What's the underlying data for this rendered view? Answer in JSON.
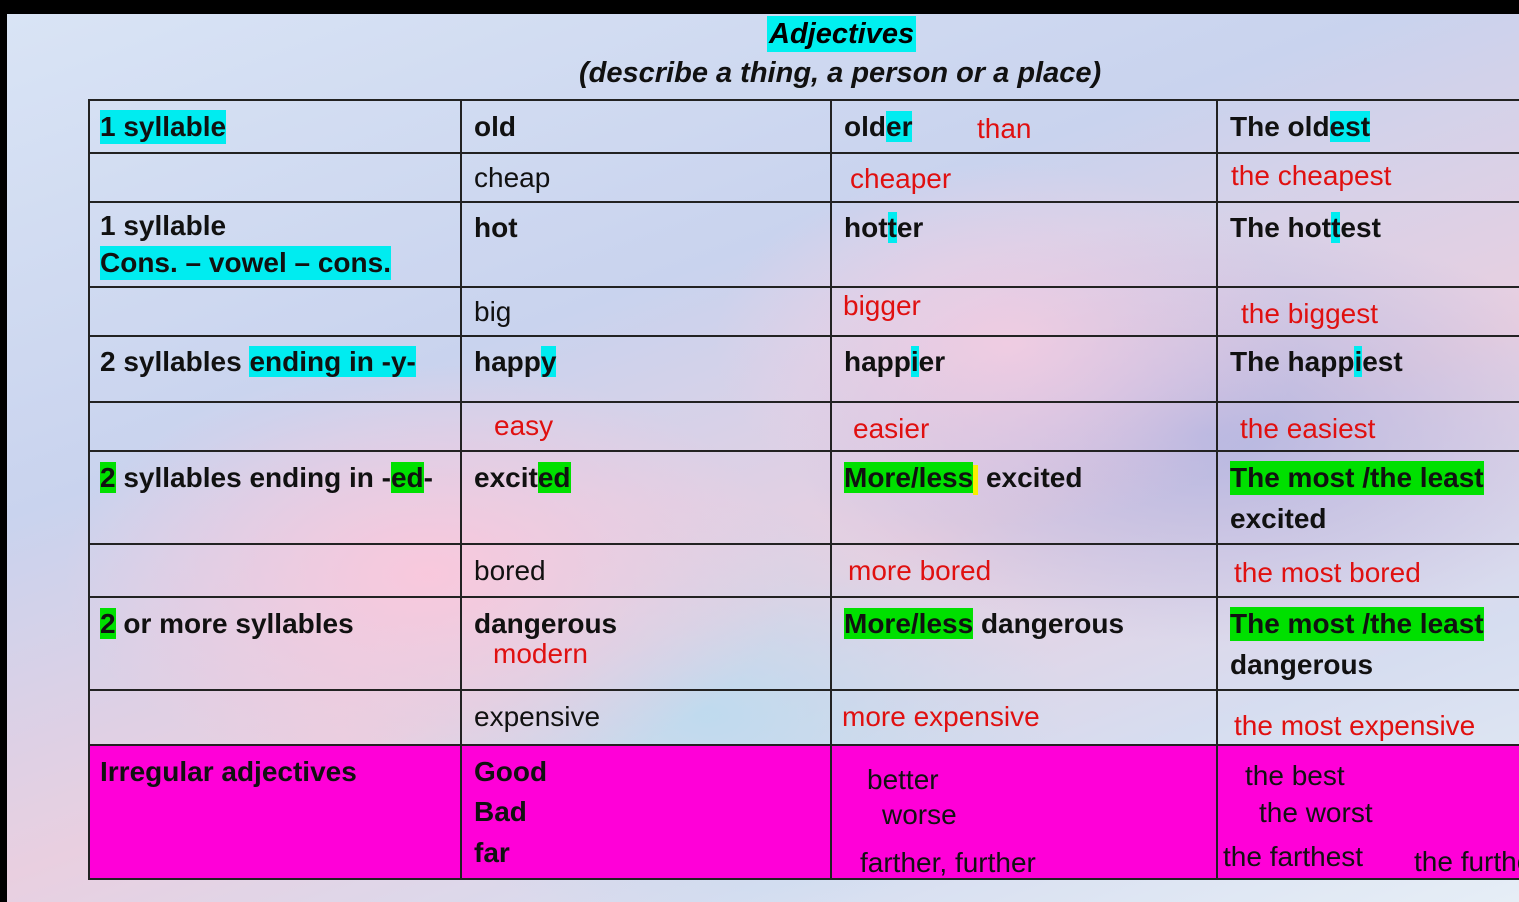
{
  "title": "Adjectives",
  "subtitle": "(describe a thing, a person or a place)",
  "rows": {
    "r1": {
      "label": "1 syllable",
      "adj": "old",
      "comp_a": "old",
      "comp_b": "er",
      "than": "than",
      "sup_a": "The old",
      "sup_b": "est"
    },
    "r2": {
      "adj": "cheap",
      "comp": "cheaper",
      "sup": "the cheapest"
    },
    "r3": {
      "label_1": "1 syllable",
      "label_2": "Cons. – vowel – cons.",
      "adj": "hot",
      "comp_a": "hot",
      "comp_b": "t",
      "comp_c": "er",
      "sup_a": "The hot",
      "sup_b": "t",
      "sup_c": "est"
    },
    "r4": {
      "adj": "big",
      "comp": "bigger",
      "sup": "the biggest"
    },
    "r5": {
      "label_a": "2 syllables ",
      "label_b": "ending in  -y-",
      "adj_a": "happ",
      "adj_b": "y",
      "comp_a": "happ",
      "comp_b": "i",
      "comp_c": "er",
      "sup_a": "The happ",
      "sup_b": "i",
      "sup_c": "est"
    },
    "r6": {
      "adj": "easy",
      "comp": "easier",
      "sup": "the easiest"
    },
    "r7": {
      "label_a": "2",
      "label_b": " syllables ending in -",
      "label_c": "ed",
      "label_d": "-",
      "adj_a": "excit",
      "adj_b": "ed",
      "comp_a": "More/less",
      "comp_b": " excited",
      "sup_a": "The most /the least",
      "sup_b": "excited"
    },
    "r8": {
      "adj": "bored",
      "comp": "more bored",
      "sup": "the most bored"
    },
    "r9": {
      "label_a": "2",
      "label_b": " or more syllables",
      "adj": "dangerous",
      "adj_2": "modern",
      "comp_a": "More/less",
      "comp_b": " dangerous",
      "sup_a": "The most /the least",
      "sup_b": "dangerous"
    },
    "r10": {
      "adj": "expensive",
      "comp": "more expensive",
      "sup": "the most expensive"
    },
    "r11": {
      "label": "Irregular adjectives",
      "adj_1": "Good",
      "adj_2": "Bad",
      "adj_3": "far",
      "comp_1": "better",
      "comp_2": "worse",
      "comp_3": "farther, further",
      "sup_1": "the best",
      "sup_2": "the worst",
      "sup_3": "the farthest",
      "sup_4": "the furthest"
    }
  },
  "colors": {
    "highlight_cyan": "#00ecf0",
    "highlight_green": "#00e000",
    "highlight_yellow": "#f7f000",
    "irregular_row": "#ff00d8",
    "red_text": "#e01010"
  }
}
